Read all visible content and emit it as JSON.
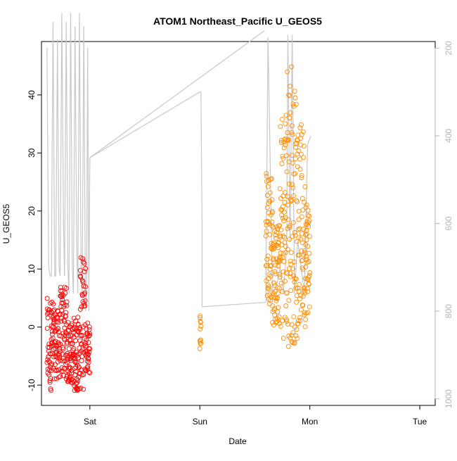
{
  "chart_data": {
    "type": "scatter",
    "title": "ATOM1 Northeast_Pacific U_GEOS5",
    "xlabel": "Date",
    "ylabel": "U_GEOS5",
    "x_ticks": [
      "Sat",
      "Sun",
      "Mon",
      "Tue"
    ],
    "y_ticks": [
      -10,
      0,
      10,
      20,
      30,
      40
    ],
    "y2_ticks": [
      200,
      400,
      600,
      800,
      1000
    ],
    "xlim_days": [
      -0.44,
      3.14
    ],
    "ylim": [
      -13.5,
      49.2
    ],
    "y2lim": [
      1015,
      185
    ],
    "grid": false,
    "colors": {
      "series_1": "#ff0000",
      "series_2": "#ff8c00",
      "pressure_line": "#c8c8c8",
      "axis_left": "#000000",
      "axis_right": "#b4b4b4"
    },
    "series": [
      {
        "color": "#ff0000",
        "segments": [
          {
            "x": [
              -0.39,
              -0.33
            ],
            "y_min": -11,
            "y_max": 5
          },
          {
            "x": [
              -0.33,
              -0.27
            ],
            "y_min": -9,
            "y_max": 3
          },
          {
            "x": [
              -0.27,
              -0.21
            ],
            "y_min": -9,
            "y_max": 7
          },
          {
            "x": [
              -0.21,
              -0.15
            ],
            "y_min": -10,
            "y_max": 1
          },
          {
            "x": [
              -0.15,
              -0.09
            ],
            "y_min": -11,
            "y_max": 2
          },
          {
            "x": [
              -0.09,
              -0.04
            ],
            "y_min": -11,
            "y_max": 12
          },
          {
            "x": [
              -0.04,
              0.0
            ],
            "y_min": -8,
            "y_max": 1
          }
        ]
      },
      {
        "color": "#ff8c00",
        "segments": [
          {
            "x": [
              1.0,
              1.01
            ],
            "y_min": -4,
            "y_max": 3
          },
          {
            "x": [
              1.6,
              1.66
            ],
            "y_min": 4,
            "y_max": 28
          },
          {
            "x": [
              1.66,
              1.73
            ],
            "y_min": 0,
            "y_max": 18
          },
          {
            "x": [
              1.73,
              1.79
            ],
            "y_min": -2,
            "y_max": 38
          },
          {
            "x": [
              1.79,
              1.84
            ],
            "y_min": -6,
            "y_max": 47
          },
          {
            "x": [
              1.84,
              1.89
            ],
            "y_min": -3,
            "y_max": 42
          },
          {
            "x": [
              1.89,
              1.96
            ],
            "y_min": 0,
            "y_max": 35
          },
          {
            "x": [
              1.96,
              2.0
            ],
            "y_min": 2,
            "y_max": 23
          }
        ]
      }
    ],
    "pressure_line": {
      "x": [
        -0.39,
        -0.375,
        -0.36,
        -0.35,
        -0.335,
        -0.32,
        -0.31,
        -0.295,
        -0.28,
        -0.27,
        -0.255,
        -0.24,
        -0.23,
        -0.215,
        -0.2,
        -0.19,
        -0.175,
        -0.16,
        -0.15,
        -0.135,
        -0.12,
        -0.11,
        -0.095,
        -0.08,
        -0.07,
        -0.055,
        -0.04,
        -0.03,
        -0.02,
        -0.01,
        0.0,
        1.59,
        0.0
      ],
      "y": [
        200,
        700,
        720,
        720,
        140,
        720,
        720,
        180,
        700,
        720,
        120,
        600,
        720,
        140,
        700,
        760,
        120,
        700,
        760,
        150,
        650,
        760,
        120,
        700,
        760,
        150,
        800,
        780,
        200,
        800,
        450,
        160,
        450
      ]
    },
    "pressure_line_mon": {
      "x": [
        0.0,
        1.0,
        1.01,
        1.02,
        1.02,
        1.6,
        1.62,
        1.66,
        1.7,
        1.73,
        1.76,
        1.79,
        1.8,
        1.82,
        1.84,
        1.86,
        1.89,
        1.92,
        1.95,
        1.98,
        2.01
      ],
      "y": [
        450,
        300,
        300,
        600,
        790,
        780,
        175,
        760,
        740,
        700,
        760,
        650,
        170,
        640,
        170,
        760,
        640,
        700,
        760,
        420,
        400
      ]
    }
  }
}
